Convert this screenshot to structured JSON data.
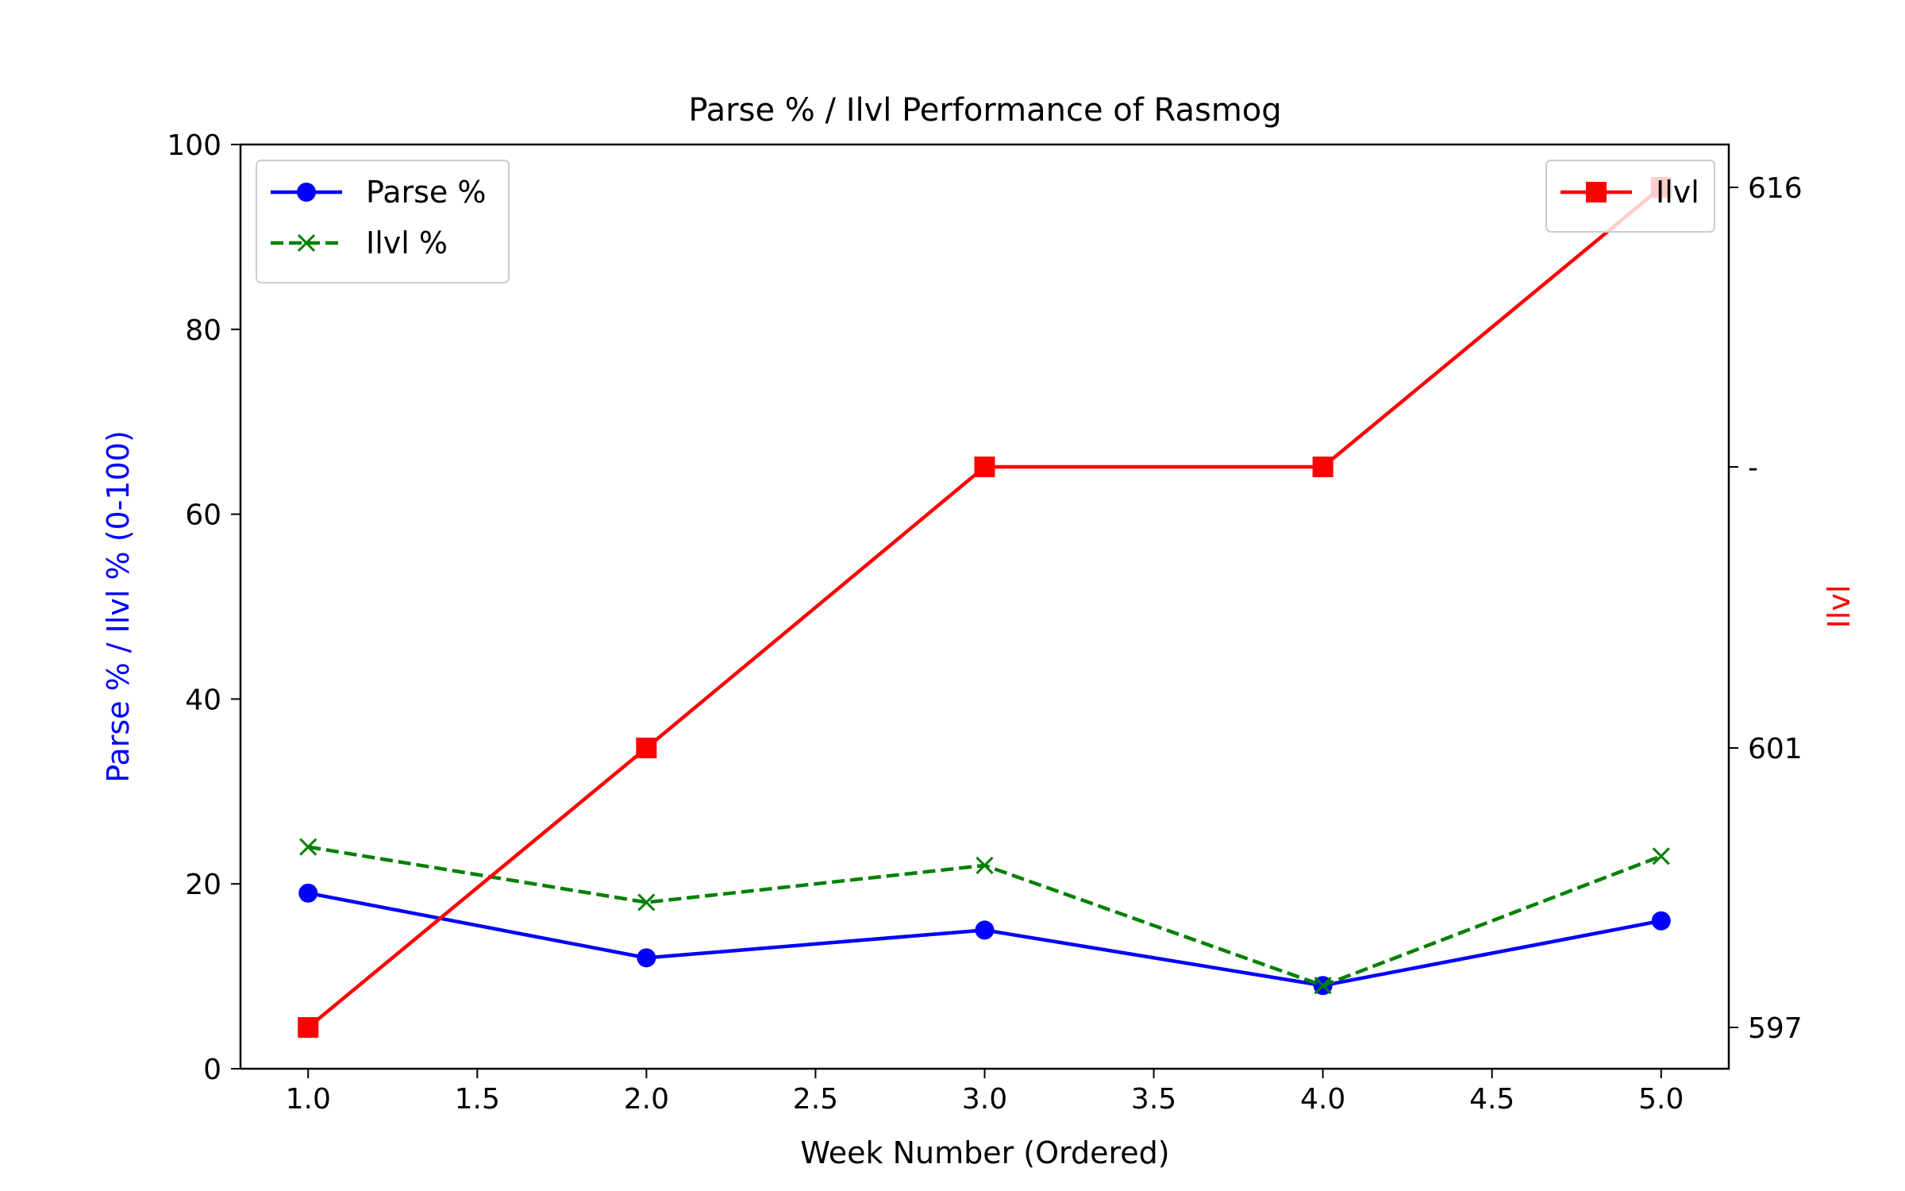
{
  "chart_data": {
    "type": "line",
    "title": "Parse % / Ilvl Performance of Rasmog",
    "xlabel": "Week Number (Ordered)",
    "ylabel_left": "Parse % / Ilvl % (0-100)",
    "ylabel_right": "Ilvl",
    "x": [
      1.0,
      2.0,
      3.0,
      4.0,
      5.0
    ],
    "xlim": [
      0.8,
      5.2
    ],
    "ylim_left": [
      0,
      100
    ],
    "x_ticks": [
      "1.0",
      "1.5",
      "2.0",
      "2.5",
      "3.0",
      "3.5",
      "4.0",
      "4.5",
      "5.0"
    ],
    "y_ticks_left": [
      "0",
      "20",
      "40",
      "60",
      "80",
      "100"
    ],
    "y_ticks_right": [
      "597",
      "601",
      "-",
      "616"
    ],
    "series_left": [
      {
        "name": "Parse %",
        "values": [
          19,
          12,
          15,
          9,
          16
        ],
        "color": "#0000ff",
        "marker": "circle",
        "linestyle": "solid"
      },
      {
        "name": "Ilvl %",
        "values": [
          24,
          18,
          22,
          9,
          23
        ],
        "color": "#008000",
        "marker": "x",
        "linestyle": "dashed"
      }
    ],
    "series_right": [
      {
        "name": "Ilvl",
        "values": [
          "597",
          "601",
          "-",
          "-",
          "616"
        ],
        "color": "#ff0000",
        "marker": "square",
        "linestyle": "solid"
      }
    ],
    "legend_left_position": "top-left",
    "legend_right_position": "top-right",
    "grid": false
  }
}
